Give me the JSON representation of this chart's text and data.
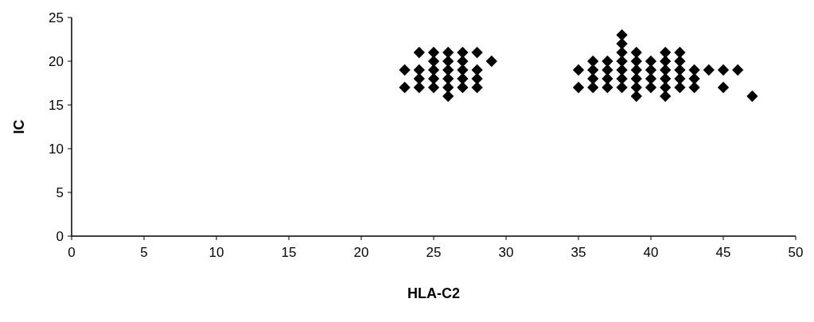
{
  "chart_data": {
    "type": "scatter",
    "xlabel": "HLA-C2",
    "ylabel": "IC",
    "marker": "diamond",
    "grid": false,
    "xlim": [
      0,
      50
    ],
    "xticks": [
      0,
      5,
      10,
      15,
      20,
      25,
      30,
      35,
      40,
      45,
      50
    ],
    "ylim": [
      0,
      25
    ],
    "yticks": [
      0,
      5,
      10,
      15,
      20,
      25
    ],
    "series": [
      {
        "color": "#000000",
        "x": [
          23,
          23,
          24,
          24,
          24,
          24,
          25,
          25,
          25,
          25,
          25,
          26,
          26,
          26,
          26,
          26,
          26,
          27,
          27,
          27,
          27,
          27,
          28,
          28,
          28,
          28,
          29,
          35,
          35,
          36,
          36,
          36,
          36,
          37,
          37,
          37,
          37,
          38,
          38,
          38,
          38,
          38,
          38,
          38,
          39,
          39,
          39,
          39,
          39,
          39,
          40,
          40,
          40,
          40,
          41,
          41,
          41,
          41,
          41,
          41,
          42,
          42,
          42,
          42,
          42,
          43,
          43,
          43,
          44,
          45,
          45,
          46,
          47
        ],
        "values": [
          19,
          17,
          21,
          19,
          18,
          17,
          21,
          20,
          19,
          18,
          17,
          21,
          20,
          19,
          18,
          17,
          16,
          21,
          20,
          19,
          18,
          17,
          21,
          19,
          18,
          17,
          20,
          19,
          17,
          20,
          19,
          18,
          17,
          20,
          19,
          18,
          17,
          23,
          22,
          21,
          20,
          19,
          18,
          17,
          21,
          20,
          19,
          18,
          17,
          16,
          20,
          19,
          18,
          17,
          21,
          20,
          19,
          18,
          17,
          16,
          21,
          20,
          19,
          18,
          17,
          19,
          18,
          17,
          19,
          19,
          17,
          19,
          16
        ]
      }
    ]
  }
}
